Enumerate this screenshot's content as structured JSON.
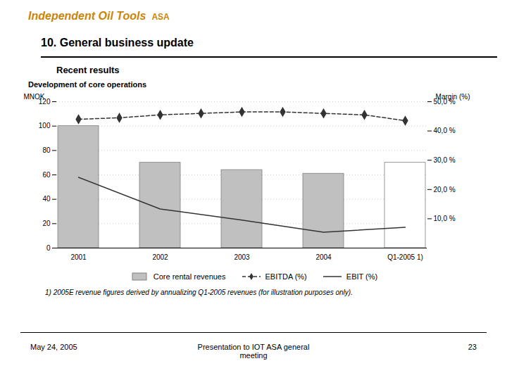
{
  "chart_data": {
    "type": "bar",
    "title": "10. General business update",
    "subtitle": "Recent results",
    "annotations": [
      "Independent Oil Tools",
      "ASA",
      "Development of core operations",
      "1) 2005E revenue figures derived by annualizing Q1-2005 revenues (for illustration purposes only).",
      "May 24, 2005",
      "Presentation to IOT ASA general\nmeeting",
      "23"
    ],
    "ylabel": "MNOK",
    "y2label": "Margin (%)",
    "categories": [
      "2001",
      null,
      "2002",
      null,
      "2003",
      null,
      "2004",
      null,
      "Q1-2005 1)"
    ],
    "series": [
      {
        "name": "Core rental revenues",
        "type": "bar",
        "values": [
          100,
          null,
          70,
          null,
          64,
          null,
          61,
          null,
          70
        ],
        "colors": [
          "#c0c0c0",
          null,
          "#c0c0c0",
          null,
          "#c0c0c0",
          null,
          "#c0c0c0",
          null,
          "#ffffff"
        ]
      },
      {
        "name": "EBITDA (%)",
        "type": "line",
        "axis": "y2",
        "color": "#333333",
        "line_style": "dashed",
        "marker": "diamond",
        "values": [
          44.0,
          44.5,
          45.5,
          46.0,
          46.5,
          46.5,
          46.0,
          45.5,
          43.5
        ]
      },
      {
        "name": "EBIT (%)",
        "type": "line",
        "color": "#333333",
        "line_style": "solid",
        "values": [
          58,
          null,
          32,
          null,
          23,
          null,
          13,
          null,
          17
        ]
      }
    ],
    "ylim": [
      0,
      120
    ],
    "yticks": [
      0,
      20,
      40,
      60,
      80,
      100,
      120
    ],
    "y2lim": [
      0,
      50
    ],
    "y2ticks": [
      {
        "value": 10.0,
        "label": "10,0 %"
      },
      {
        "value": 20.0,
        "label": "20,0 %"
      },
      {
        "value": 30.0,
        "label": "30,0 %"
      },
      {
        "value": 40.0,
        "label": "40,0 %"
      },
      {
        "value": 50.0,
        "label": "50,0 %"
      }
    ],
    "grid": true,
    "legend": "bottom"
  }
}
